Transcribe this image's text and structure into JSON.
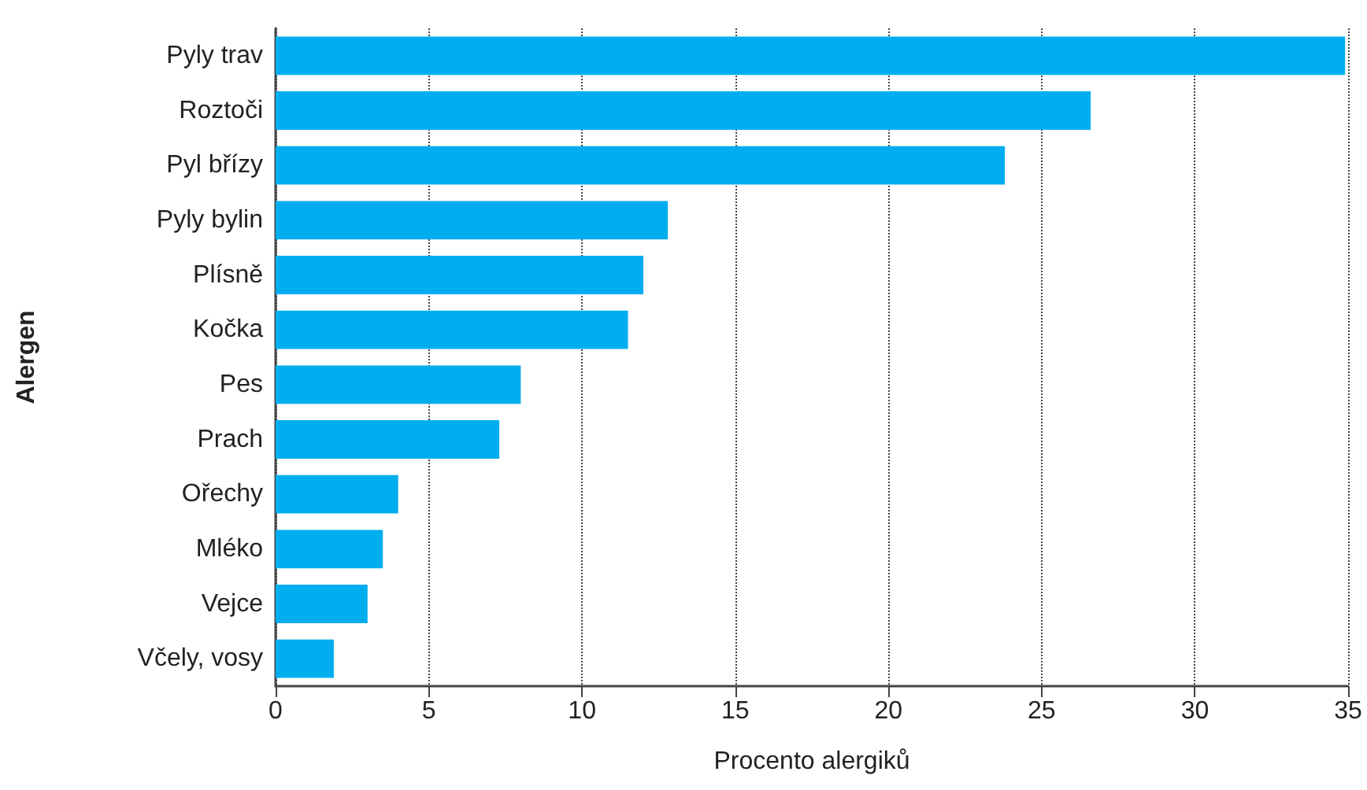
{
  "chart_data": {
    "type": "bar",
    "orientation": "horizontal",
    "xlabel": "Procento alergiků",
    "ylabel": "Alergen",
    "categories": [
      "Pyly trav",
      "Roztoči",
      "Pyl břízy",
      "Pyly bylin",
      "Plísně",
      "Kočka",
      "Pes",
      "Prach",
      "Ořechy",
      "Mléko",
      "Vejce",
      "Včely, vosy"
    ],
    "values": [
      34.9,
      26.6,
      23.8,
      12.8,
      12.0,
      11.5,
      8.0,
      7.3,
      4.0,
      3.5,
      3.0,
      1.9
    ],
    "color": "#00adef",
    "xlim": [
      0,
      35
    ],
    "xticks": [
      0,
      5,
      10,
      15,
      20,
      25,
      30,
      35
    ],
    "grid": "x"
  }
}
